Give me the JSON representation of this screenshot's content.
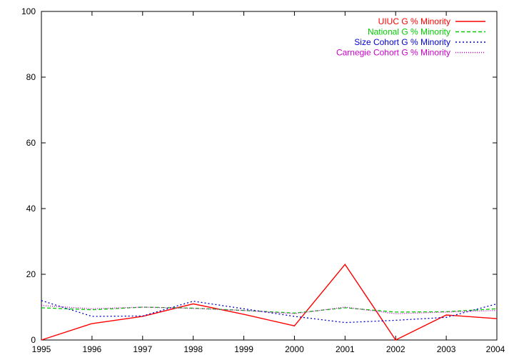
{
  "chart_data": {
    "type": "line",
    "title": "",
    "xlabel": "",
    "ylabel": "",
    "x": [
      1995,
      1996,
      1997,
      1998,
      1999,
      2000,
      2001,
      2002,
      2003,
      2004
    ],
    "xlim": [
      1995,
      2004
    ],
    "ylim": [
      0,
      100
    ],
    "x_ticks": [
      "1995",
      "1996",
      "1997",
      "1998",
      "1999",
      "2000",
      "2001",
      "2002",
      "2003",
      "2004"
    ],
    "y_ticks": [
      "0",
      "20",
      "40",
      "60",
      "80",
      "100"
    ],
    "grid": false,
    "legend_position": "top-right",
    "series": [
      {
        "name": "UIUC G % Minority",
        "color": "#ff0000",
        "dash": "solid",
        "values": [
          0,
          5,
          7.2,
          11,
          7.8,
          4.3,
          23,
          0,
          7.6,
          6.5
        ]
      },
      {
        "name": "National G % Minority",
        "color": "#00cc00",
        "dash": "dashed",
        "values": [
          9.8,
          9.2,
          10,
          9.7,
          9,
          8.2,
          9.8,
          8.5,
          8.6,
          9.5
        ]
      },
      {
        "name": "Size Cohort G % Minority",
        "color": "#0000cc",
        "dash": "dotted",
        "values": [
          12,
          7.2,
          7.3,
          11.8,
          9.5,
          7.2,
          5.3,
          6,
          6.9,
          11
        ]
      },
      {
        "name": "Carnegie Cohort G % Minority",
        "color": "#cc00cc",
        "dash": "densedot",
        "values": [
          10.5,
          9.5,
          10,
          9.6,
          9,
          8,
          10,
          8,
          8.5,
          9
        ]
      }
    ]
  }
}
